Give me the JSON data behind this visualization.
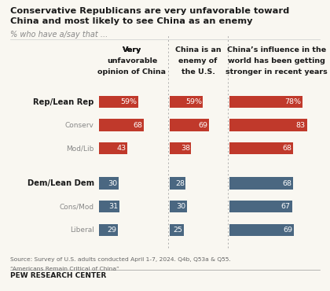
{
  "title_line1": "Conservative Republicans are very unfavorable toward",
  "title_line2": "China and most likely to see China as an enemy",
  "subtitle": "% who have a/say that ...",
  "col_headers": [
    "Very\nunfavorable\nopinion of China",
    "China is an\nenemy of\nthe U.S.",
    "China’s influence in the\nworld has been getting\nstronger in recent years"
  ],
  "col_header_underline": [
    "Very",
    "",
    ""
  ],
  "row_labels": [
    "Rep/Lean Rep",
    "Conserv",
    "Mod/Lib",
    "Dem/Lean Dem",
    "Cons/Mod",
    "Liberal"
  ],
  "row_bold": [
    true,
    false,
    false,
    true,
    false,
    false
  ],
  "col1_values": [
    59,
    68,
    43,
    30,
    31,
    29
  ],
  "col2_values": [
    59,
    69,
    38,
    28,
    30,
    25
  ],
  "col3_values": [
    78,
    83,
    68,
    68,
    67,
    69
  ],
  "col1_labels": [
    "59%",
    "68",
    "43",
    "30",
    "31",
    "29"
  ],
  "col2_labels": [
    "59%",
    "69",
    "38",
    "28",
    "30",
    "25"
  ],
  "col3_labels": [
    "78%",
    "83",
    "68",
    "68",
    "67",
    "69"
  ],
  "rep_color": "#c0392b",
  "dem_color": "#4a6781",
  "bar_height": 0.52,
  "source_line1": "Source: Survey of U.S. adults conducted April 1-7, 2024. Q4b, Q53a & Q55.",
  "source_line2": "“Americans Remain Critical of China”",
  "footer": "PEW RESEARCH CENTER",
  "background_color": "#f9f7f1",
  "text_color": "#1a1a1a",
  "gray_text": "#888888"
}
